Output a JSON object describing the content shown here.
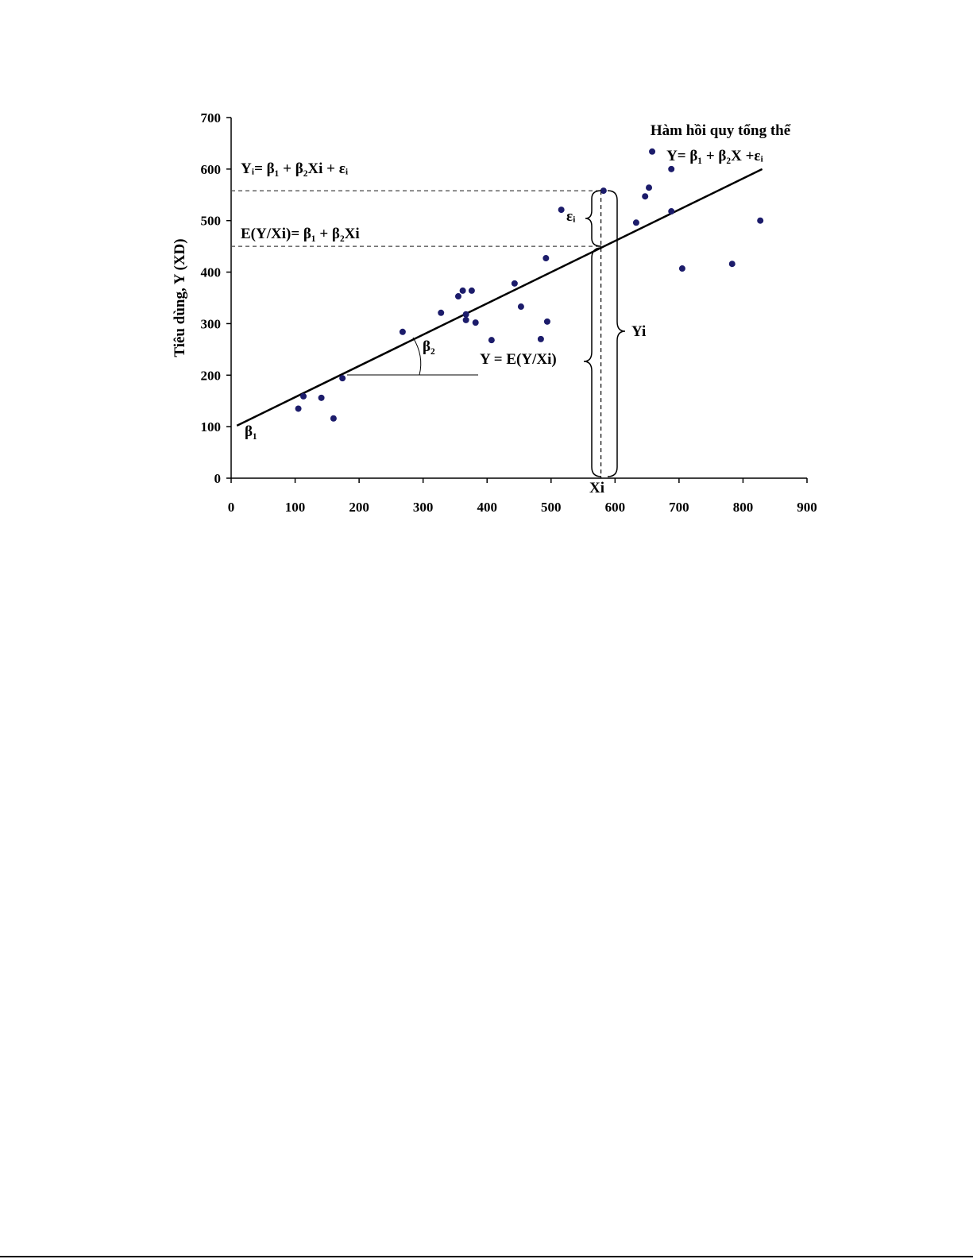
{
  "chart_data": {
    "type": "scatter",
    "y_label": "Tiêu dùng, Y (XD)",
    "xlim": [
      0,
      900
    ],
    "xticks": [
      0,
      100,
      200,
      300,
      400,
      500,
      600,
      700,
      800,
      900
    ],
    "ylim": [
      0,
      700
    ],
    "yticks": [
      0,
      100,
      200,
      300,
      400,
      500,
      600,
      700
    ],
    "color": "#1c1c6b",
    "x": [
      105,
      113,
      141,
      160,
      174,
      268,
      328,
      355,
      362,
      376,
      367,
      367,
      382,
      407,
      443,
      453,
      484,
      492,
      494,
      516,
      582,
      633,
      647,
      653,
      658,
      688,
      688,
      705,
      783,
      827
    ],
    "values": [
      135,
      159,
      156,
      116,
      194,
      284,
      321,
      353,
      364,
      364,
      318,
      307,
      302,
      268,
      378,
      333,
      270,
      427,
      304,
      521,
      558,
      496,
      547,
      564,
      634,
      600,
      518,
      407,
      416,
      500
    ],
    "regression_line": {
      "x": [
        9,
        830
      ],
      "values": [
        102,
        600
      ]
    },
    "marked_x": 578,
    "marked_y": 558,
    "marked_fit": 450,
    "annotations": [
      "Hàm hồi quy tổng thể",
      "Y= β₁ + β₂X +εᵢ",
      "Yᵢ= β₁ + β₂Xi + εᵢ",
      "E(Y/Xi)= β₁ + β₂Xi",
      "εᵢ",
      "β₂",
      "Y = E(Y/Xi)",
      "Yi",
      "Xi",
      "β₁"
    ]
  }
}
